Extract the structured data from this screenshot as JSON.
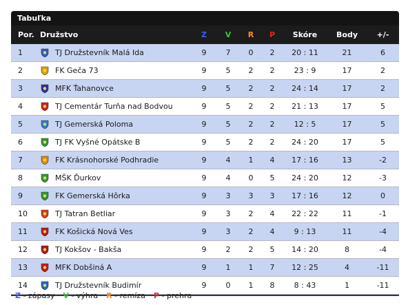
{
  "title": "Tabuľka",
  "headers": {
    "pos": "Por.",
    "team": "Družstvo",
    "z": "Z",
    "v": "V",
    "r": "R",
    "p": "P",
    "score": "Skóre",
    "points": "Body",
    "diff": "+/-"
  },
  "header_colors": {
    "z": "#3a5bff",
    "v": "#2ecc40",
    "r": "#ff8c1a",
    "p": "#e8231f"
  },
  "rows": [
    {
      "pos": "1",
      "team": "TJ Družstevník Malá Ida",
      "z": "9",
      "v": "7",
      "r": "0",
      "p": "2",
      "score": "20 : 11",
      "points": "21",
      "diff": "6",
      "crest": "#2b5fbf"
    },
    {
      "pos": "2",
      "team": "FK Geča 73",
      "z": "9",
      "v": "5",
      "r": "2",
      "p": "2",
      "score": "23 : 9",
      "points": "17",
      "diff": "2",
      "crest": "#e0a000"
    },
    {
      "pos": "3",
      "team": "MFK Ťahanovce",
      "z": "9",
      "v": "5",
      "r": "2",
      "p": "2",
      "score": "24 : 14",
      "points": "17",
      "diff": "2",
      "crest": "#3030a0"
    },
    {
      "pos": "4",
      "team": "TJ Cementár Turňa nad Bodvou",
      "z": "9",
      "v": "5",
      "r": "2",
      "p": "2",
      "score": "21 : 13",
      "points": "17",
      "diff": "5",
      "crest": "#d02020"
    },
    {
      "pos": "5",
      "team": "TJ Gemerská Poloma",
      "z": "9",
      "v": "5",
      "r": "2",
      "p": "2",
      "score": "12 : 5",
      "points": "17",
      "diff": "5",
      "crest": "#2a7fd0"
    },
    {
      "pos": "6",
      "team": "TJ FK Vyšné Opátske B",
      "z": "9",
      "v": "5",
      "r": "2",
      "p": "2",
      "score": "24 : 20",
      "points": "17",
      "diff": "5",
      "crest": "#2a9a3a"
    },
    {
      "pos": "7",
      "team": "FK Krásnohorské Podhradie",
      "z": "9",
      "v": "4",
      "r": "1",
      "p": "4",
      "score": "17 : 16",
      "points": "13",
      "diff": "-2",
      "crest": "#e08a00"
    },
    {
      "pos": "8",
      "team": "MŠK Ďurkov",
      "z": "9",
      "v": "4",
      "r": "0",
      "p": "5",
      "score": "24 : 20",
      "points": "12",
      "diff": "-3",
      "crest": "#2a9a3a"
    },
    {
      "pos": "9",
      "team": "FK Gemerská Hôrka",
      "z": "9",
      "v": "3",
      "r": "3",
      "p": "3",
      "score": "17 : 16",
      "points": "12",
      "diff": "0",
      "crest": "#2a9a3a"
    },
    {
      "pos": "10",
      "team": "TJ Tatran Betliar",
      "z": "9",
      "v": "3",
      "r": "2",
      "p": "4",
      "score": "22 : 22",
      "points": "11",
      "diff": "-1",
      "crest": "#d83a1a"
    },
    {
      "pos": "11",
      "team": "FK Košická Nová Ves",
      "z": "9",
      "v": "3",
      "r": "2",
      "p": "4",
      "score": "9 : 13",
      "points": "11",
      "diff": "-4",
      "crest": "#c01818"
    },
    {
      "pos": "12",
      "team": "TJ Kokšov - Bakša",
      "z": "9",
      "v": "2",
      "r": "2",
      "p": "5",
      "score": "14 : 20",
      "points": "8",
      "diff": "-4",
      "crest": "#b01818"
    },
    {
      "pos": "13",
      "team": "MFK Dobšiná A",
      "z": "9",
      "v": "1",
      "r": "1",
      "p": "7",
      "score": "12 : 25",
      "points": "4",
      "diff": "-11",
      "crest": "#c81818"
    },
    {
      "pos": "14",
      "team": "TJ Družstevník Budimír",
      "z": "9",
      "v": "0",
      "r": "1",
      "p": "8",
      "score": "8 : 43",
      "points": "1",
      "diff": "-11",
      "crest": "#1a6ad0"
    }
  ],
  "legend": [
    {
      "key": "Z",
      "text": " - zápasy",
      "color": "#3a5bff"
    },
    {
      "key": "V",
      "text": " - výhra",
      "color": "#2ecc40"
    },
    {
      "key": "R",
      "text": " - remíza",
      "color": "#ff8c1a"
    },
    {
      "key": "P",
      "text": " - prehra",
      "color": "#e8231f"
    }
  ]
}
